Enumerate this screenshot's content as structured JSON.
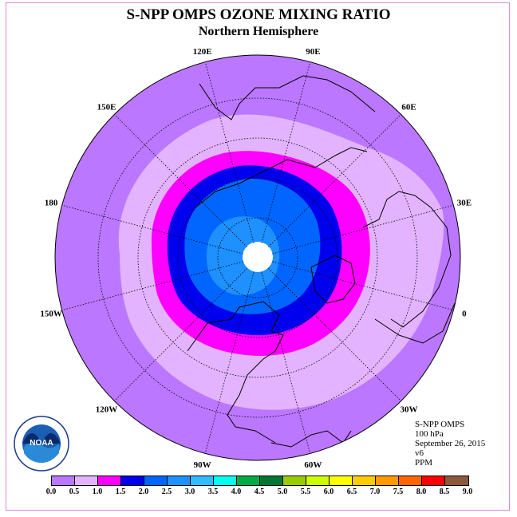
{
  "title": "S-NPP OMPS OZONE MIXING RATIO",
  "subtitle": "Northern Hemisphere",
  "info": [
    "S-NPP OMPS",
    "100 hPa",
    "September 26, 2015",
    "v6",
    "PPM"
  ],
  "logo_text": "NOAA",
  "longitude_labels": [
    {
      "text": "90E",
      "lon": 90
    },
    {
      "text": "60E",
      "lon": 60
    },
    {
      "text": "30E",
      "lon": 30
    },
    {
      "text": "0",
      "lon": 0
    },
    {
      "text": "30W",
      "lon": -30
    },
    {
      "text": "60W",
      "lon": -60
    },
    {
      "text": "90W",
      "lon": -90
    },
    {
      "text": "120W",
      "lon": -120
    },
    {
      "text": "150W",
      "lon": -150
    },
    {
      "text": "180",
      "lon": 180
    },
    {
      "text": "150E",
      "lon": 150
    },
    {
      "text": "120E",
      "lon": 120
    }
  ],
  "colorbar": {
    "ticks": [
      "0.0",
      "0.5",
      "1.0",
      "1.5",
      "2.0",
      "2.5",
      "3.0",
      "3.5",
      "4.0",
      "4.5",
      "5.0",
      "5.5",
      "6.0",
      "6.5",
      "7.0",
      "7.5",
      "8.0",
      "8.5",
      "9.0"
    ],
    "colors": [
      "#bb77ff",
      "#e3b3ff",
      "#ff00ff",
      "#0000ee",
      "#0066ff",
      "#1e90ff",
      "#33bbff",
      "#00ffee",
      "#00aa44",
      "#007733",
      "#99cc00",
      "#ccff00",
      "#ffff00",
      "#ffcc00",
      "#ff9900",
      "#ff6600",
      "#ff0000",
      "#8b5a3c"
    ]
  },
  "regions": {
    "outer": "#bb77ff",
    "light": "#e3b3ff",
    "magenta": "#ff00ff",
    "dark_blue": "#0000ee",
    "mid_blue": "#0066ff",
    "light_blue": "#1e90ff",
    "pole": "#ffffff"
  }
}
